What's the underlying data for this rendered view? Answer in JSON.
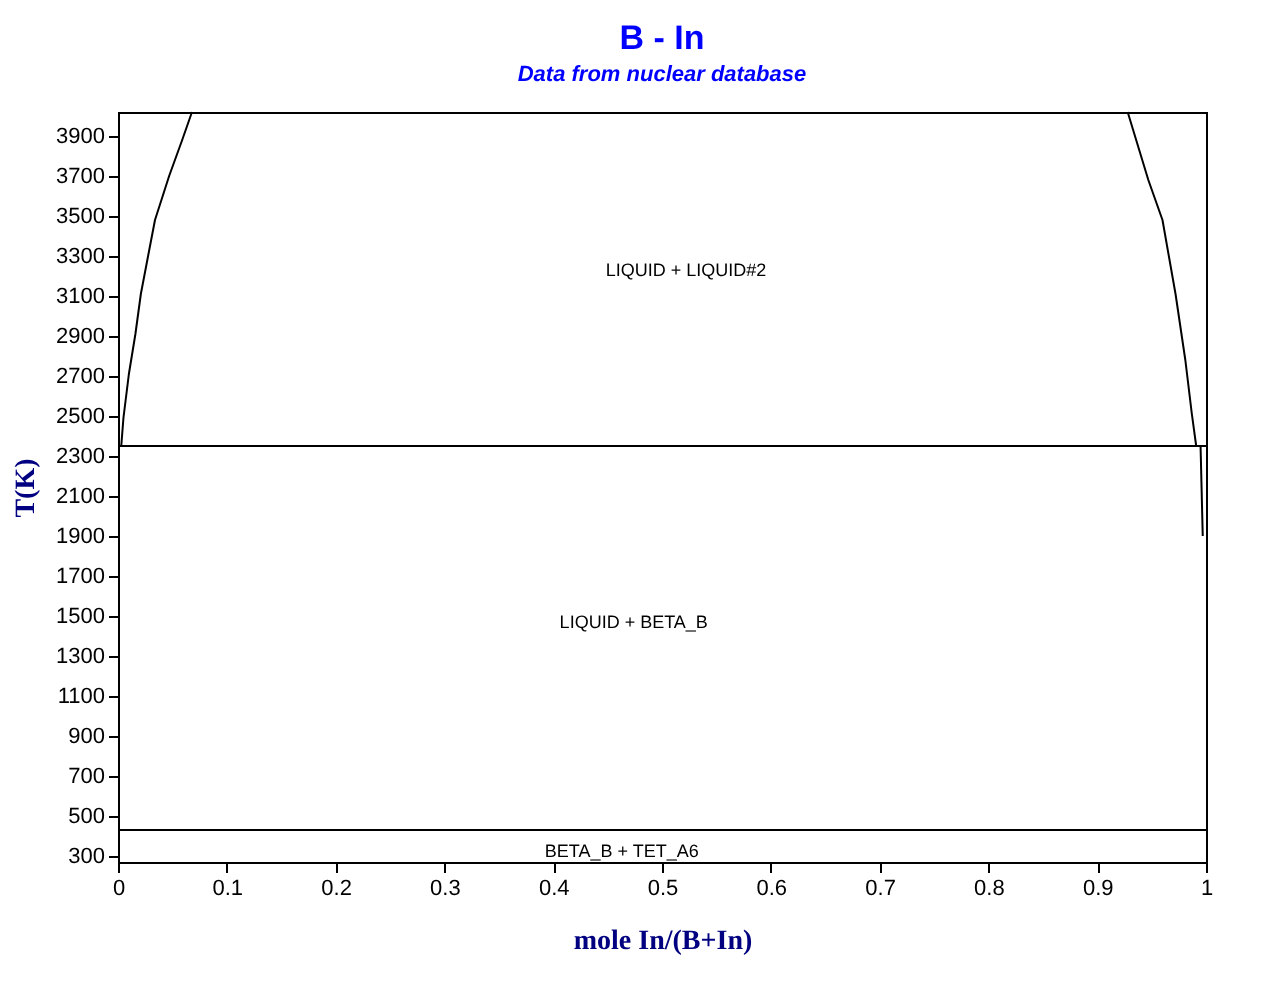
{
  "chart_data": {
    "type": "line",
    "title": "B - In",
    "subtitle": "Data from nuclear database",
    "xlabel": "mole In/(B+In)",
    "ylabel": "T(K)",
    "xlim": [
      0,
      1
    ],
    "xticks": [
      0,
      0.1,
      0.2,
      0.3,
      0.4,
      0.5,
      0.6,
      0.7,
      0.8,
      0.9,
      1
    ],
    "ylim": [
      270,
      4020
    ],
    "yticks": [
      300,
      500,
      700,
      900,
      1100,
      1300,
      1500,
      1700,
      1900,
      2100,
      2300,
      2500,
      2700,
      2900,
      3100,
      3300,
      3500,
      3700,
      3900
    ],
    "series": [
      {
        "color": "#000000",
        "x": [
          0.003,
          0.005,
          0.01,
          0.016,
          0.021,
          0.028,
          0.034,
          0.047,
          0.059,
          0.068
        ],
        "values": [
          2350,
          2490,
          2710,
          2910,
          3110,
          3310,
          3480,
          3700,
          3880,
          4020
        ]
      },
      {
        "color": "#000000",
        "x": [
          0.928,
          0.947,
          0.96,
          0.972,
          0.981,
          0.987,
          0.991
        ],
        "values": [
          4020,
          3680,
          3480,
          3110,
          2780,
          2510,
          2350
        ]
      },
      {
        "color": "#000000",
        "x": [
          0.995,
          0.997
        ],
        "values": [
          2350,
          1900
        ]
      }
    ],
    "ref_lines": [
      {
        "axis": "y",
        "value": 2350,
        "color": "#000000"
      },
      {
        "axis": "y",
        "value": 430,
        "color": "#000000"
      }
    ],
    "annotations": [
      "LIQUID + LIQUID#2",
      "LIQUID + BETA_B",
      "BETA_B + TET_A6"
    ],
    "grid": false,
    "legend": false,
    "marker": "none",
    "line_style": "solid"
  }
}
